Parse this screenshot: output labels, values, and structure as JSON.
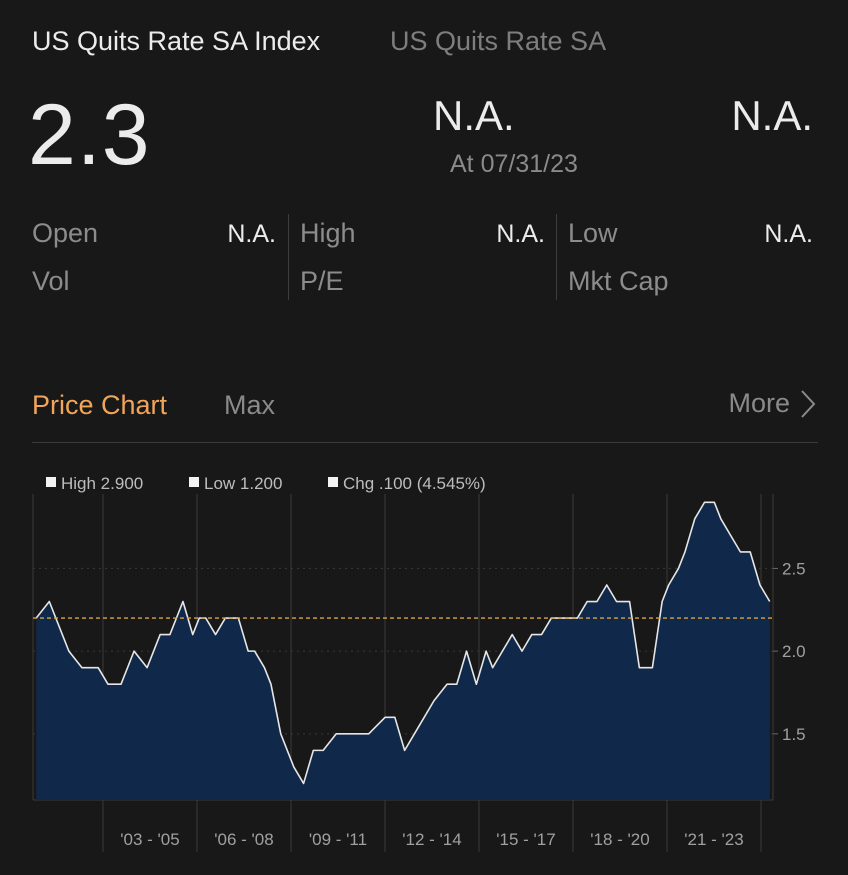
{
  "header": {
    "title": "US Quits Rate SA Index",
    "subtitle": "US Quits Rate SA"
  },
  "quote": {
    "last": "2.3",
    "change": "N.A.",
    "percent_change": "N.A.",
    "as_of": "At 07/31/23"
  },
  "stats": {
    "open_label": "Open",
    "open_value": "N.A.",
    "high_label": "High",
    "high_value": "N.A.",
    "low_label": "Low",
    "low_value": "N.A.",
    "vol_label": "Vol",
    "pe_label": "P/E",
    "mktcap_label": "Mkt Cap"
  },
  "chart_header": {
    "title": "Price Chart",
    "range": "Max",
    "more_label": "More"
  },
  "chart_data": {
    "type": "area",
    "legend": {
      "high": "High 2.900",
      "low": "Low 1.200",
      "chg": "Chg .100 (4.545%)"
    },
    "y_ticks": [
      "2.5",
      "2.0",
      "1.5"
    ],
    "y_tick_values": [
      2.5,
      2.0,
      1.5
    ],
    "x_ticks": [
      "'03 - '05",
      "'06 - '08",
      "'09 - '11",
      "'12 - '14",
      "'15 - '17",
      "'18 - '20",
      "'21 - '23"
    ],
    "ylim": [
      1.1,
      2.95
    ],
    "xlim": [
      2000.9,
      2023.6
    ],
    "reference_value": 2.2,
    "colors": {
      "fill": "#10294a",
      "line": "#e6e6e6",
      "reference": "#d9a24a"
    },
    "x": [
      2001.0,
      2001.4,
      2002.0,
      2002.4,
      2002.9,
      2003.2,
      2003.6,
      2004.0,
      2004.4,
      2004.8,
      2005.1,
      2005.5,
      2005.8,
      2006.0,
      2006.2,
      2006.5,
      2006.8,
      2007.2,
      2007.5,
      2007.7,
      2008.0,
      2008.2,
      2008.5,
      2008.9,
      2009.2,
      2009.5,
      2009.8,
      2010.2,
      2010.5,
      2010.9,
      2011.2,
      2011.7,
      2012.0,
      2012.3,
      2012.6,
      2012.9,
      2013.2,
      2013.6,
      2013.9,
      2014.2,
      2014.5,
      2014.8,
      2015.0,
      2015.3,
      2015.6,
      2015.9,
      2016.2,
      2016.5,
      2016.8,
      2017.2,
      2017.6,
      2017.9,
      2018.2,
      2018.5,
      2018.8,
      2019.2,
      2019.5,
      2019.9,
      2020.2,
      2020.4,
      2020.7,
      2020.9,
      2021.2,
      2021.5,
      2021.8,
      2022.0,
      2022.3,
      2022.6,
      2022.9,
      2023.2,
      2023.5
    ],
    "y": [
      2.2,
      2.3,
      2.0,
      1.9,
      1.9,
      1.8,
      1.8,
      2.0,
      1.9,
      2.1,
      2.1,
      2.3,
      2.1,
      2.2,
      2.2,
      2.1,
      2.2,
      2.2,
      2.0,
      2.0,
      1.9,
      1.8,
      1.5,
      1.3,
      1.2,
      1.4,
      1.4,
      1.5,
      1.5,
      1.5,
      1.5,
      1.6,
      1.6,
      1.4,
      1.5,
      1.6,
      1.7,
      1.8,
      1.8,
      2.0,
      1.8,
      2.0,
      1.9,
      2.0,
      2.1,
      2.0,
      2.1,
      2.1,
      2.2,
      2.2,
      2.2,
      2.3,
      2.3,
      2.4,
      2.3,
      2.3,
      1.9,
      1.9,
      2.3,
      2.4,
      2.5,
      2.6,
      2.8,
      2.9,
      2.9,
      2.8,
      2.7,
      2.6,
      2.6,
      2.4,
      2.3
    ]
  }
}
